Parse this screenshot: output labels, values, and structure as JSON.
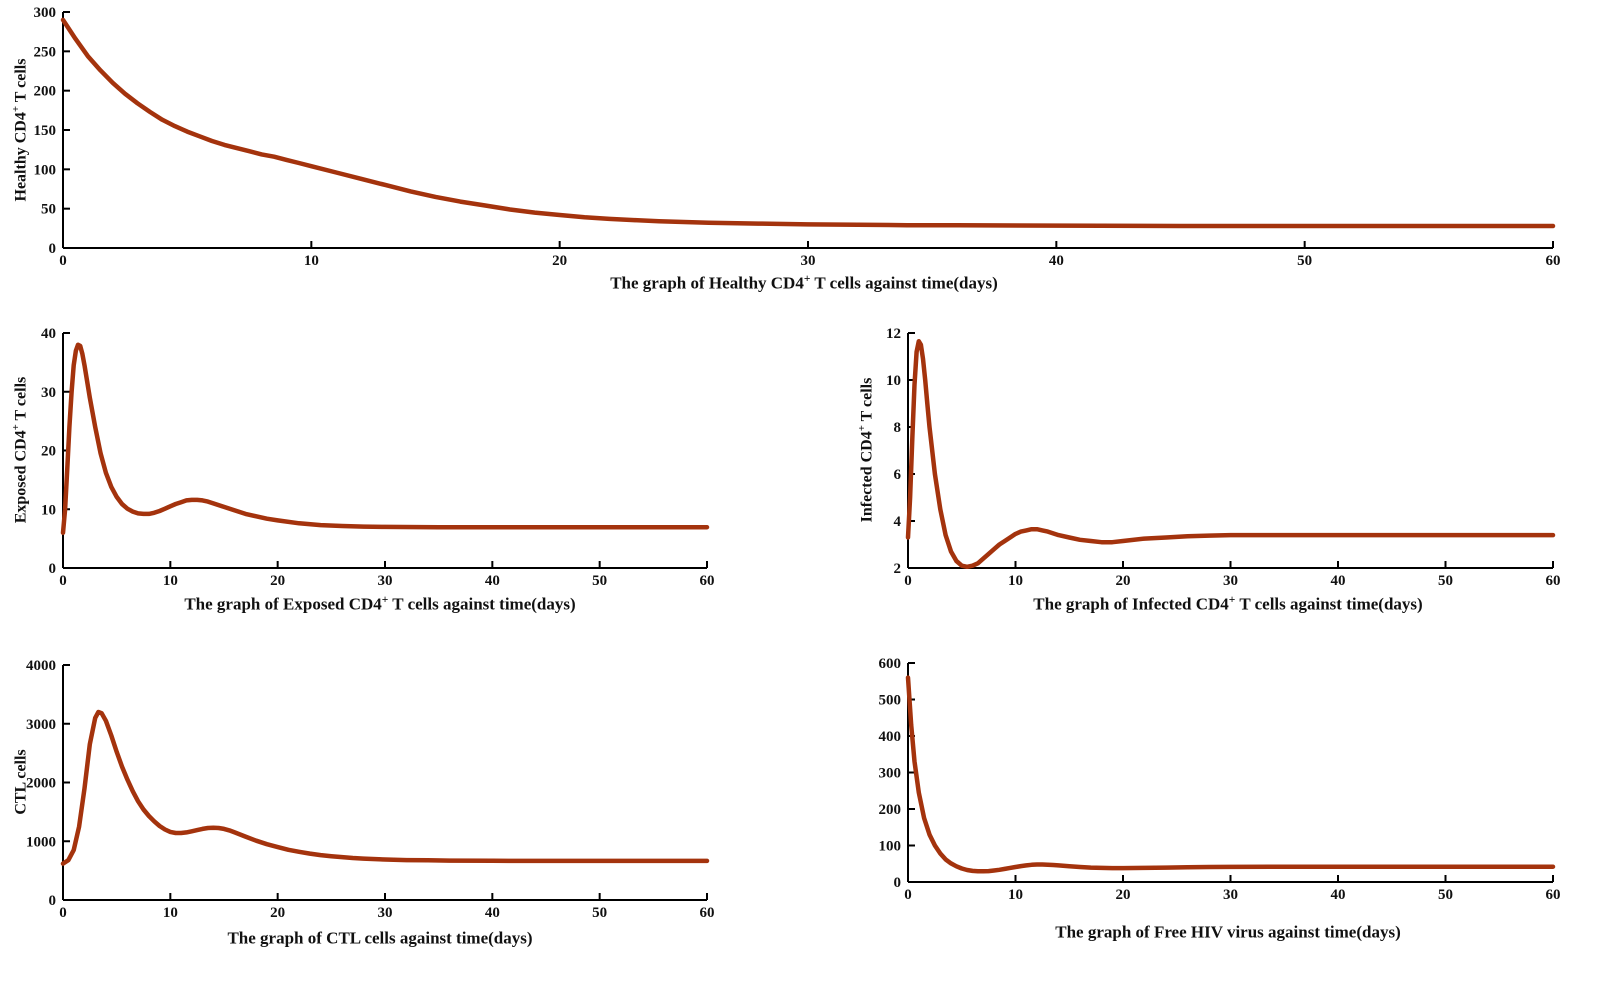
{
  "style": {
    "line_color": "#A4330D",
    "axis_color": "#000000",
    "text_color": "#111111"
  },
  "chart_data": [
    {
      "type": "line",
      "title": {
        "pre": "The graph of Healthy CD4",
        "sup": "+",
        "post": " T cells  against time(days)"
      },
      "ylabel": {
        "pre": "Healthy CD4",
        "sup": "+",
        "post": " T cells"
      },
      "xlabel": "time(days)",
      "xlim": [
        0,
        60
      ],
      "ylim": [
        0,
        300
      ],
      "xticks": [
        0,
        10,
        20,
        30,
        40,
        50,
        60
      ],
      "yticks": [
        0,
        50,
        100,
        150,
        200,
        250,
        300
      ],
      "x": [
        0,
        0.5,
        1,
        1.5,
        2,
        2.5,
        3,
        3.5,
        4,
        4.5,
        5,
        5.5,
        6,
        6.5,
        7,
        7.5,
        8,
        8.5,
        9,
        9.5,
        10,
        11,
        12,
        13,
        14,
        15,
        16,
        17,
        18,
        19,
        20,
        21,
        22,
        23,
        24,
        25,
        26,
        28,
        30,
        32,
        34,
        36,
        40,
        45,
        50,
        55,
        60
      ],
      "y": [
        290,
        266,
        244,
        226,
        210,
        196,
        184,
        173,
        163,
        155,
        148,
        142,
        136,
        131,
        127,
        123,
        119,
        116,
        112,
        108,
        104,
        96,
        88,
        80,
        72,
        65,
        59,
        54,
        49,
        45,
        42,
        39,
        37,
        35.5,
        34,
        33,
        32,
        31,
        30,
        29.5,
        29,
        29,
        28.5,
        28,
        28,
        28,
        28
      ]
    },
    {
      "type": "line",
      "title": {
        "pre": "The graph of Exposed CD4",
        "sup": "+",
        "post": " T cells  against time(days)"
      },
      "ylabel": {
        "pre": "Exposed CD4",
        "sup": "+",
        "post": " T cells"
      },
      "xlabel": "time(days)",
      "xlim": [
        0,
        60
      ],
      "ylim": [
        0,
        40
      ],
      "xticks": [
        0,
        10,
        20,
        30,
        40,
        50,
        60
      ],
      "yticks": [
        0,
        10,
        20,
        30,
        40
      ],
      "x": [
        0,
        0.2,
        0.4,
        0.6,
        0.8,
        1,
        1.2,
        1.4,
        1.6,
        1.8,
        2,
        2.5,
        3,
        3.5,
        4,
        4.5,
        5,
        5.5,
        6,
        6.5,
        7,
        7.5,
        8,
        8.5,
        9,
        9.5,
        10,
        10.5,
        11,
        11.5,
        12,
        12.5,
        13,
        13.5,
        14,
        15,
        16,
        17,
        18,
        19,
        20,
        22,
        24,
        26,
        28,
        30,
        35,
        40,
        50,
        60
      ],
      "y": [
        6,
        10,
        17,
        24,
        30,
        34.5,
        37,
        38,
        37.8,
        36.5,
        34.5,
        29,
        24,
        19.5,
        16.2,
        13.8,
        12.1,
        10.9,
        10.1,
        9.6,
        9.3,
        9.2,
        9.2,
        9.4,
        9.7,
        10.1,
        10.5,
        10.9,
        11.2,
        11.5,
        11.6,
        11.6,
        11.5,
        11.3,
        11,
        10.4,
        9.8,
        9.2,
        8.8,
        8.4,
        8.1,
        7.6,
        7.3,
        7.15,
        7.05,
        7,
        6.95,
        6.95,
        6.95,
        6.95
      ]
    },
    {
      "type": "line",
      "title": {
        "pre": "The graph of Infected CD4",
        "sup": "+",
        "post": " T cells  against time(days)"
      },
      "ylabel": {
        "pre": "Infected CD4",
        "sup": "+",
        "post": " T cells"
      },
      "xlabel": "time(days)",
      "xlim": [
        0,
        60
      ],
      "ylim": [
        2,
        12
      ],
      "xticks": [
        0,
        10,
        20,
        30,
        40,
        50,
        60
      ],
      "yticks": [
        2,
        4,
        6,
        8,
        10,
        12
      ],
      "x": [
        0,
        0.2,
        0.4,
        0.6,
        0.8,
        1,
        1.2,
        1.4,
        1.6,
        1.8,
        2,
        2.5,
        3,
        3.5,
        4,
        4.5,
        5,
        5.5,
        6,
        6.5,
        7,
        7.5,
        8,
        8.5,
        9,
        9.5,
        10,
        10.5,
        11,
        11.5,
        12,
        12.5,
        13,
        14,
        15,
        16,
        17,
        18,
        19,
        20,
        22,
        24,
        26,
        28,
        30,
        35,
        40,
        50,
        60
      ],
      "y": [
        3.3,
        5,
        7.5,
        9.8,
        11.2,
        11.65,
        11.5,
        10.9,
        10,
        9,
        8,
        6,
        4.5,
        3.4,
        2.7,
        2.3,
        2.1,
        2.05,
        2.1,
        2.2,
        2.4,
        2.6,
        2.8,
        3,
        3.15,
        3.3,
        3.45,
        3.55,
        3.6,
        3.65,
        3.65,
        3.6,
        3.55,
        3.4,
        3.3,
        3.2,
        3.15,
        3.1,
        3.1,
        3.15,
        3.25,
        3.3,
        3.35,
        3.38,
        3.4,
        3.4,
        3.4,
        3.4,
        3.4
      ]
    },
    {
      "type": "line",
      "title": {
        "pre": "The graph of CTL cells  against time(days)",
        "sup": "",
        "post": ""
      },
      "ylabel": {
        "pre": "CTL cells",
        "sup": "",
        "post": ""
      },
      "xlabel": "time(days)",
      "xlim": [
        0,
        60
      ],
      "ylim": [
        0,
        4000
      ],
      "xticks": [
        0,
        10,
        20,
        30,
        40,
        50,
        60
      ],
      "yticks": [
        0,
        1000,
        2000,
        3000,
        4000
      ],
      "x": [
        0,
        0.5,
        1,
        1.5,
        2,
        2.5,
        3,
        3.3,
        3.6,
        4,
        4.5,
        5,
        5.5,
        6,
        6.5,
        7,
        7.5,
        8,
        8.5,
        9,
        9.5,
        10,
        10.5,
        11,
        11.5,
        12,
        12.5,
        13,
        13.5,
        14,
        14.5,
        15,
        15.5,
        16,
        17,
        18,
        19,
        20,
        21,
        22,
        23,
        24,
        25,
        26,
        27,
        28,
        30,
        32,
        34,
        36,
        40,
        45,
        50,
        55,
        60
      ],
      "y": [
        620,
        680,
        850,
        1250,
        1900,
        2650,
        3100,
        3200,
        3180,
        3050,
        2800,
        2520,
        2270,
        2050,
        1850,
        1680,
        1540,
        1430,
        1340,
        1260,
        1200,
        1160,
        1140,
        1140,
        1150,
        1170,
        1190,
        1210,
        1225,
        1230,
        1225,
        1210,
        1185,
        1150,
        1080,
        1010,
        950,
        900,
        855,
        820,
        790,
        765,
        745,
        730,
        715,
        705,
        690,
        680,
        675,
        670,
        668,
        665,
        665,
        665,
        665
      ]
    },
    {
      "type": "line",
      "title": {
        "pre": "The graph of Free HIV virus   against time(days)",
        "sup": "",
        "post": ""
      },
      "ylabel": null,
      "xlabel": "time(days)",
      "xlim": [
        0,
        60
      ],
      "ylim": [
        0,
        600
      ],
      "xticks": [
        0,
        10,
        20,
        30,
        40,
        50,
        60
      ],
      "yticks": [
        0,
        100,
        200,
        300,
        400,
        500,
        600
      ],
      "x": [
        0,
        0.3,
        0.6,
        1,
        1.5,
        2,
        2.5,
        3,
        3.5,
        4,
        4.5,
        5,
        5.5,
        6,
        6.5,
        7,
        7.5,
        8,
        8.5,
        9,
        9.5,
        10,
        10.5,
        11,
        11.5,
        12,
        12.5,
        13,
        13.5,
        14,
        15,
        16,
        17,
        18,
        19,
        20,
        22,
        24,
        26,
        28,
        30,
        35,
        40,
        50,
        60
      ],
      "y": [
        560,
        430,
        330,
        245,
        175,
        130,
        100,
        78,
        62,
        51,
        43,
        37,
        33,
        30.5,
        29.5,
        29.5,
        30,
        31.5,
        33.5,
        36,
        38.5,
        41,
        43.5,
        45.5,
        47,
        48,
        48,
        47.5,
        46.5,
        45.5,
        43,
        41,
        39.5,
        38.5,
        38,
        38,
        38.5,
        39.5,
        40.5,
        41,
        41.5,
        42,
        42,
        42,
        42
      ]
    }
  ]
}
